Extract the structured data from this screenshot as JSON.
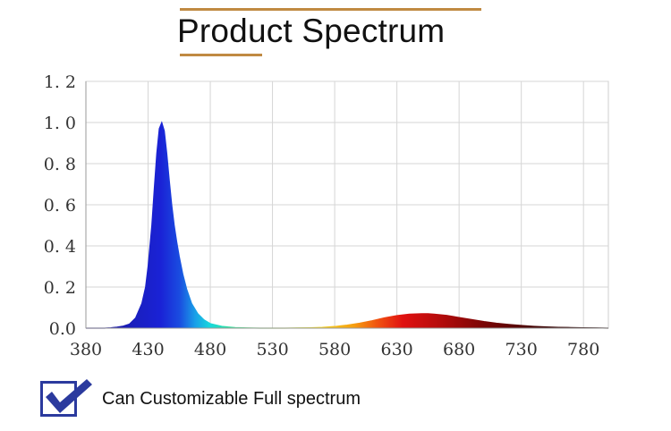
{
  "title": "Product Spectrum",
  "footer": {
    "text": "Can Customizable Full spectrum"
  },
  "colors": {
    "accent_line": "#c08a42",
    "check": "#2b3a9e",
    "blue_peak": "#1a22d6",
    "red_peak": "#8a0a0a"
  },
  "icons": {
    "check": "checkbox-checked-icon"
  },
  "chart_data": {
    "type": "area",
    "title": "",
    "xlabel": "",
    "ylabel": "",
    "xlim": [
      380,
      800
    ],
    "ylim": [
      0,
      1.2
    ],
    "x_ticks": [
      380,
      430,
      480,
      530,
      580,
      630,
      680,
      730,
      780
    ],
    "x_tick_labels": [
      "380",
      "430",
      "480",
      "530",
      "580",
      "630",
      "680",
      "730",
      "780"
    ],
    "y_ticks": [
      0,
      0.2,
      0.4,
      0.6,
      0.8,
      1.0,
      1.2
    ],
    "y_tick_labels": [
      "0.0",
      "0. 2",
      "0. 4",
      "0. 6",
      "0. 8",
      "1. 0",
      "1. 2"
    ],
    "grid": true,
    "legend": "none",
    "series": [
      {
        "x": [
          380,
          395,
          400,
          405,
          410,
          415,
          420,
          425,
          428,
          430,
          433,
          435,
          437,
          439,
          441,
          443,
          445,
          447,
          449,
          451,
          453,
          455,
          458,
          461,
          465,
          470,
          475,
          480,
          490,
          500,
          510,
          520,
          530,
          540,
          550,
          560,
          570,
          580,
          590,
          600,
          610,
          620,
          630,
          640,
          650,
          655,
          660,
          670,
          680,
          690,
          700,
          710,
          720,
          730,
          740,
          750,
          760,
          770,
          780,
          790,
          800
        ],
        "y": [
          0,
          0,
          0.002,
          0.005,
          0.01,
          0.02,
          0.05,
          0.12,
          0.2,
          0.3,
          0.5,
          0.68,
          0.85,
          0.97,
          1.0,
          0.96,
          0.85,
          0.72,
          0.6,
          0.5,
          0.42,
          0.35,
          0.26,
          0.19,
          0.12,
          0.07,
          0.04,
          0.022,
          0.008,
          0.003,
          0.001,
          0.0,
          0.0,
          0.0,
          0.001,
          0.002,
          0.004,
          0.008,
          0.015,
          0.024,
          0.036,
          0.05,
          0.061,
          0.068,
          0.07,
          0.07,
          0.068,
          0.062,
          0.052,
          0.042,
          0.032,
          0.024,
          0.018,
          0.013,
          0.009,
          0.006,
          0.004,
          0.003,
          0.002,
          0.001,
          0.0
        ]
      }
    ]
  }
}
